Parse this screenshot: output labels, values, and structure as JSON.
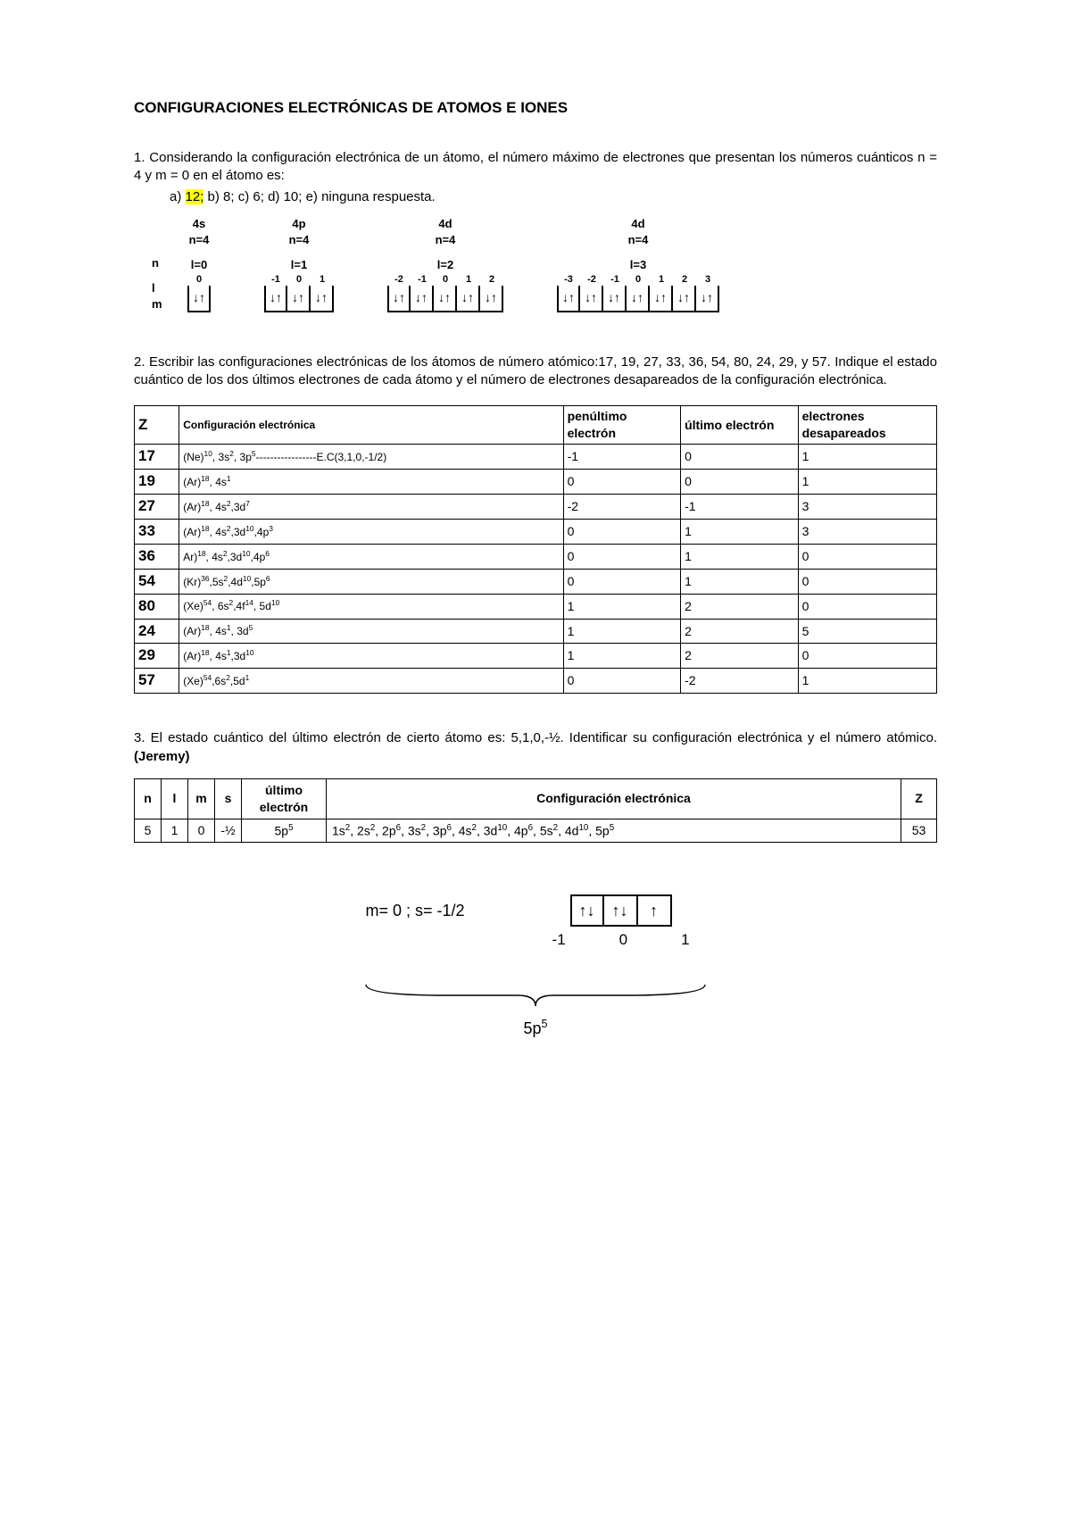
{
  "title": "CONFIGURACIONES ELECTRÓNICAS DE ATOMOS E IONES",
  "q1": {
    "text_a": "1.  Considerando  la  configuración  electrónica  de  un  átomo,  el  número  máximo   de electrones que presentan los números cuánticos n = 4 y m = 0 en el átomo es:",
    "opt_prefix": "a)  ",
    "opt_hl": "12;",
    "opt_rest": " b) 8; c) 6; d) 10; e) ninguna respuesta.",
    "left_labels": [
      "n",
      "l",
      "m"
    ],
    "groups": [
      {
        "head": "4s",
        "n": "n=4",
        "l": "l=0",
        "cells": [
          {
            "m": "0",
            "a": "↓↑"
          }
        ]
      },
      {
        "head": "4p",
        "n": "n=4",
        "l": "l=1",
        "cells": [
          {
            "m": "-1",
            "a": "↓↑"
          },
          {
            "m": "0",
            "a": "↓↑"
          },
          {
            "m": "1",
            "a": "↓↑"
          }
        ]
      },
      {
        "head": "4d",
        "n": "n=4",
        "l": "l=2",
        "cells": [
          {
            "m": "-2",
            "a": "↓↑"
          },
          {
            "m": "-1",
            "a": "↓↑"
          },
          {
            "m": "0",
            "a": "↓↑"
          },
          {
            "m": "1",
            "a": "↓↑"
          },
          {
            "m": "2",
            "a": "↓↑"
          }
        ]
      },
      {
        "head": "4d",
        "n": "n=\n4",
        "l": "l=3",
        "cells": [
          {
            "m": "-3",
            "a": "↓↑"
          },
          {
            "m": "-2",
            "a": "↓↑"
          },
          {
            "m": "-1",
            "a": "↓↑"
          },
          {
            "m": "0",
            "a": "↓↑"
          },
          {
            "m": "1",
            "a": "↓↑"
          },
          {
            "m": "2",
            "a": "↓↑"
          },
          {
            "m": "3",
            "a": "↓↑"
          }
        ]
      }
    ]
  },
  "q2": {
    "text": "2. Escribir las configuraciones electrónicas de los átomos de número atómico:17, 19, 27, 33, 36, 54, 80, 24, 29, y 57. Indique el estado cuántico de los dos últimos electrones de cada átomo y el número de electrones desapareados de la configuración electrónica.",
    "headers": [
      "Z",
      "Configuración electrónica",
      "penúltimo electrón",
      "último electrón",
      "electrones desapareados"
    ],
    "rows": [
      {
        "z": "17",
        "cfg": "(Ne)<sup>10</sup>, 3s<sup>2</sup>, 3p<sup>5</sup>-----------------E.C(3,1,0,-1/2)",
        "p": "-1",
        "u": "0",
        "d": "1"
      },
      {
        "z": "19",
        "cfg": "(Ar)<sup>18</sup>, 4s<sup>1</sup>",
        "p": "0",
        "u": "0",
        "d": "1"
      },
      {
        "z": "27",
        "cfg": "(Ar)<sup>18</sup>, 4s<sup>2</sup>,3d<sup>7</sup>",
        "p": "-2",
        "u": "-1",
        "d": "3"
      },
      {
        "z": "33",
        "cfg": "(Ar)<sup>18</sup>, 4s<sup>2</sup>,3d<sup>10</sup>,4p<sup>3</sup>",
        "p": "0",
        "u": "1",
        "d": "3"
      },
      {
        "z": "36",
        "cfg": "Ar)<sup>18</sup>, 4s<sup>2</sup>,3d<sup>10</sup>,4p<sup>6</sup>",
        "p": "0",
        "u": "1",
        "d": "0"
      },
      {
        "z": "54",
        "cfg": "(Kr)<sup>36</sup>,5s<sup>2</sup>,4d<sup>10</sup>,5p<sup>6</sup>",
        "p": "0",
        "u": "1",
        "d": "0"
      },
      {
        "z": "80",
        "cfg": "(Xe)<sup>54</sup>, 6s<sup>2</sup>,4f<sup>14</sup>, 5d<sup>10</sup>",
        "p": "1",
        "u": "2",
        "d": "0"
      },
      {
        "z": "24",
        "cfg": "(Ar)<sup>18</sup>, 4s<sup>1</sup>, 3d<sup>5</sup>",
        "p": "1",
        "u": "2",
        "d": "5"
      },
      {
        "z": "29",
        "cfg": "(Ar)<sup>18</sup>, 4s<sup>1</sup>,3d<sup>10</sup>",
        "p": "1",
        "u": "2",
        "d": "0"
      },
      {
        "z": "57",
        "cfg": "(Xe)<sup>54</sup>,6s<sup>2</sup>,5d<sup>1</sup>",
        "p": "0",
        "u": "-2",
        "d": "1"
      }
    ]
  },
  "q3": {
    "text_a": "3. El estado cuántico del último electrón de cierto átomo es: 5,1,0,-½. Identificar su configuración electrónica y el número atómico. ",
    "text_b": "(Jeremy)",
    "headers": [
      "n",
      "l",
      "m",
      "s",
      "último electrón",
      "Configuración electrónica",
      "Z"
    ],
    "row": {
      "n": "5",
      "l": "1",
      "m": "0",
      "s": "-½",
      "ue": "5p<sup>5</sup>",
      "cfg": "1s<sup>2</sup>, 2s<sup>2</sup>, 2p<sup>6</sup>, 3s<sup>2</sup>, 3p<sup>6</sup>, 4s<sup>2</sup>, 3d<sup>10</sup>, 4p<sup>6</sup>, 5s<sup>2</sup>,  4d<sup>10</sup>, 5p<sup>5</sup>",
      "z": "53"
    }
  },
  "bottom": {
    "label": "m= 0 ; s= -1/2",
    "boxes": [
      "↑↓",
      "↑↓",
      "↑"
    ],
    "nums": [
      "-1",
      "0",
      "1"
    ],
    "brace_label": "5p<sup>5</sup>"
  },
  "colors": {
    "highlight": "#ffff00",
    "text": "#000000",
    "bg": "#ffffff"
  }
}
